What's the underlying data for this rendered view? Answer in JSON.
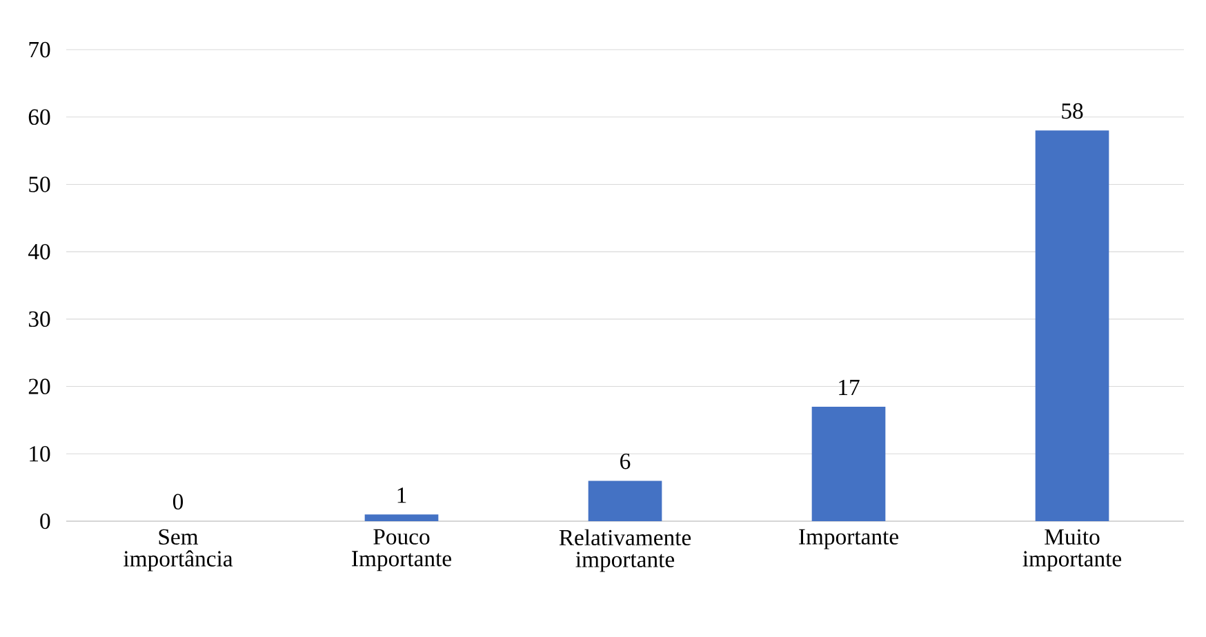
{
  "chart_data": {
    "type": "bar",
    "categories": [
      "Sem importância",
      "Pouco Importante",
      "Relativamente importante",
      "Importante",
      "Muito importante"
    ],
    "values": [
      0,
      1,
      6,
      17,
      58
    ],
    "color": "#4472c4",
    "ylim": [
      0,
      70
    ],
    "yticks": [
      0,
      10,
      20,
      30,
      40,
      50,
      60,
      70
    ],
    "grid": "y",
    "data_labels": true
  }
}
